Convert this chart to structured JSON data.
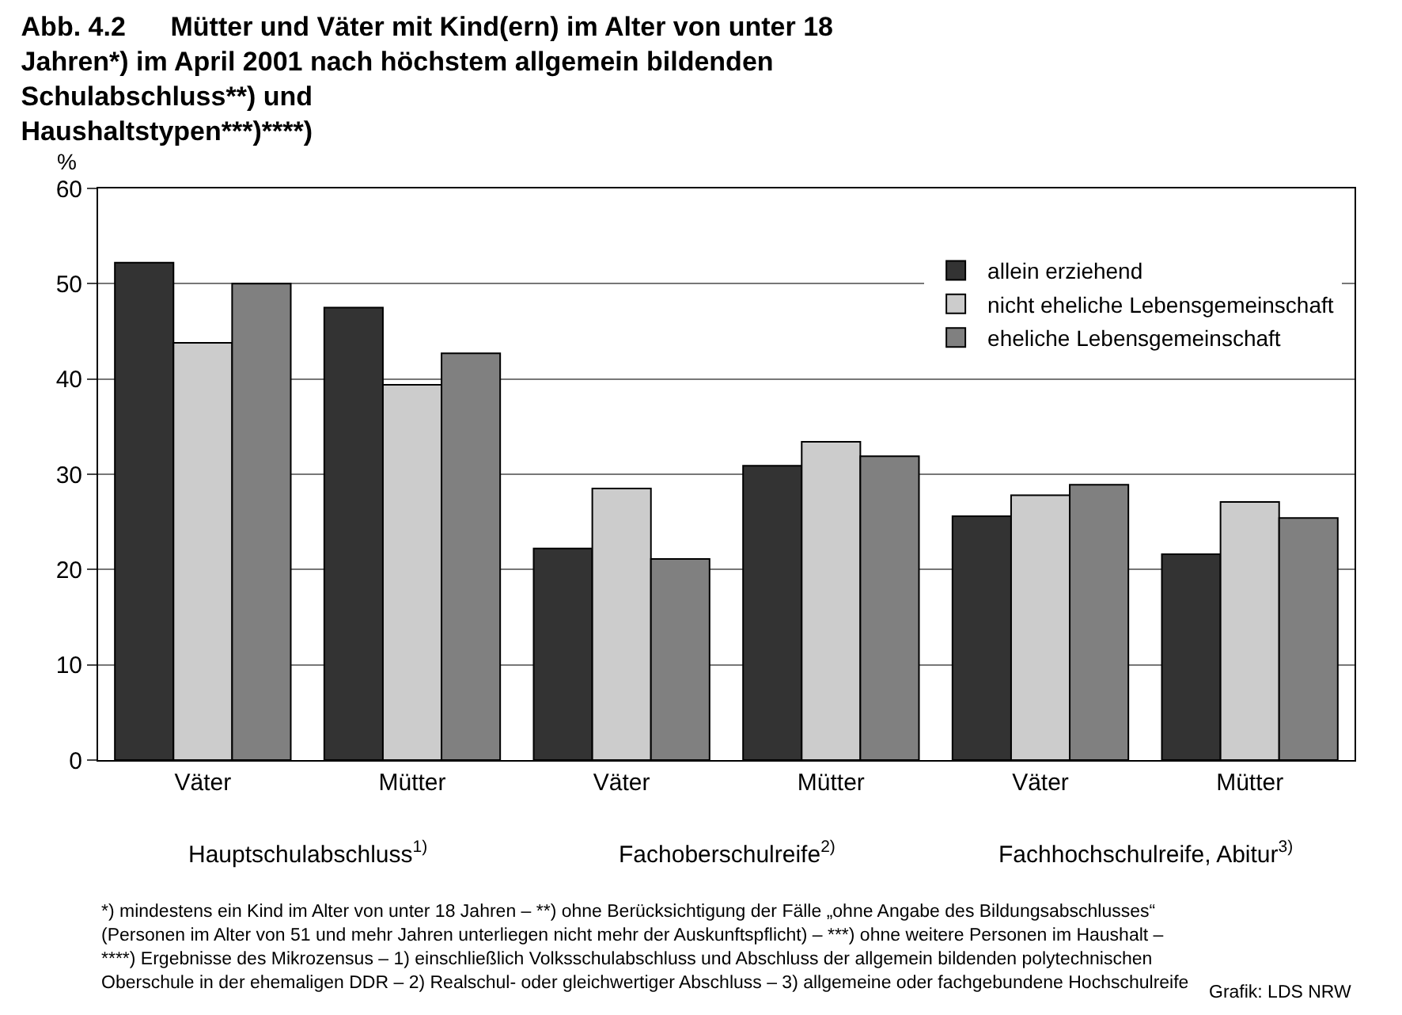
{
  "chart_data": {
    "type": "bar",
    "title": "Abb. 4.2      Mütter und Väter mit Kind(ern) im Alter von unter 18 Jahren*) im April 2001 nach höchstem allgemein bildenden Schulabschluss**) und Haushaltstypen***)****)",
    "ylabel": "%",
    "categories": [
      "Väter",
      "Mütter",
      "Väter",
      "Mütter",
      "Väter",
      "Mütter"
    ],
    "series": [
      {
        "name": "allein erziehend",
        "color": "#333333",
        "values": [
          52.2,
          47.5,
          22.2,
          30.9,
          25.6,
          21.6
        ]
      },
      {
        "name": "nicht eheliche Lebensgemeinschaft",
        "color": "#cccccc",
        "values": [
          43.8,
          39.4,
          28.5,
          33.4,
          27.8,
          27.1
        ]
      },
      {
        "name": "eheliche Lebensgemeinschaft",
        "color": "#808080",
        "values": [
          50.0,
          42.7,
          21.1,
          31.9,
          28.9,
          25.4
        ]
      }
    ],
    "ylim": [
      0,
      60
    ],
    "yticks": [
      0,
      10,
      20,
      30,
      40,
      50,
      60
    ],
    "grid": "y",
    "legend": "top right",
    "annotations": [
      "Hauptschulabschluss$^{1)}$",
      "Fachoberschulreife$^{2)}$",
      "Fachhochschulreife, Abitur$^{3)}$",
      "*) mindestens ein Kind im Alter von unter 18 Jahren – **) ohne Berücksichtigung der Fälle „ohne Angabe des Bildungsabschlusses“ (Personen im Alter von 51 und mehr Jahren unterliegen nicht mehr der Auskunftspflicht) – ***) ohne weitere Personen im Haushalt – ****) Ergebnisse des Mikrozensus – 1) einschließlich Volksschulabschluss und Abschluss der allgemein bildenden polytechnischen Oberschule in der ehemaligen DDR – 2) Realschul- oder gleichwertiger Abschluss – 3) allgemeine oder fachgebundene Hochschulreife",
      "Grafik: LDS NRW"
    ]
  }
}
